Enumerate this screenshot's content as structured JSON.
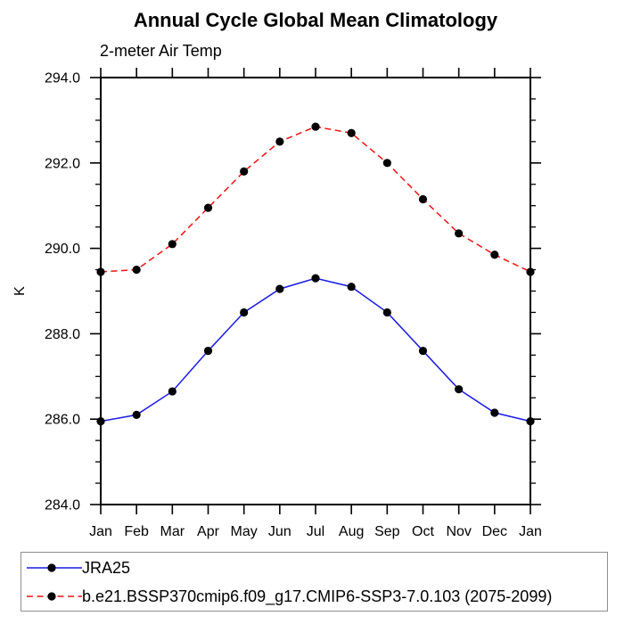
{
  "page": {
    "background": "#ffffff"
  },
  "chart_data": {
    "type": "line",
    "title": "Annual Cycle Global Mean Climatology",
    "subtitle": "2-meter Air Temp",
    "ylabel": "K",
    "categories": [
      "Jan",
      "Feb",
      "Mar",
      "Apr",
      "May",
      "Jun",
      "Jul",
      "Aug",
      "Sep",
      "Oct",
      "Nov",
      "Dec",
      "Jan"
    ],
    "ylim": [
      284.0,
      294.0
    ],
    "ytick_values": [
      284,
      286,
      288,
      290,
      292,
      294
    ],
    "ytick_labels": [
      "284.0",
      "286.0",
      "288.0",
      "290.0",
      "292.0",
      "294.0"
    ],
    "yminor_step": 0.5,
    "grid": false,
    "axis_color": "#000000",
    "legend_position": "bottom-left-outside",
    "series": [
      {
        "name": "JRA25",
        "color": "#1a1ae6",
        "line_style": "solid",
        "marker": "filled-circle",
        "marker_color": "#000000",
        "values": [
          285.95,
          286.1,
          286.65,
          287.6,
          288.5,
          289.05,
          289.3,
          289.1,
          288.5,
          287.6,
          286.7,
          286.15,
          285.95
        ]
      },
      {
        "name": "b.e21.BSSP370cmip6.f09_g17.CMIP6-SSP3-7.0.103 (2075-2099)",
        "color": "#ee1111",
        "line_style": "dashed",
        "marker": "filled-circle",
        "marker_color": "#000000",
        "values": [
          289.45,
          289.5,
          290.1,
          290.95,
          291.8,
          292.5,
          292.85,
          292.7,
          292.0,
          291.15,
          290.35,
          289.85,
          289.45
        ]
      }
    ]
  }
}
